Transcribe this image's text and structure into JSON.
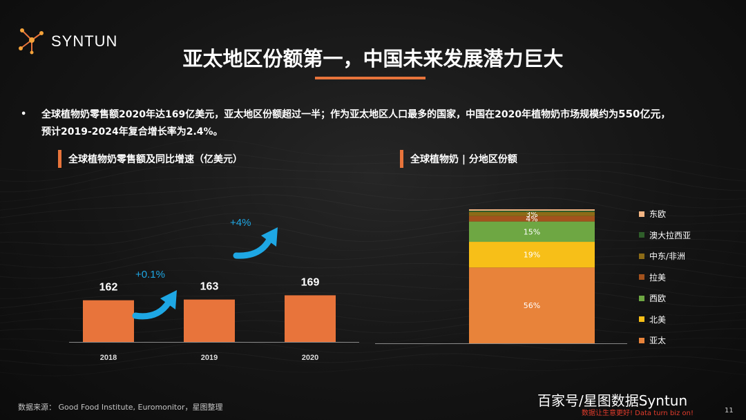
{
  "brand": {
    "name": "SYNTUN"
  },
  "title": "亚太地区份额第一，中国未来发展潜力巨大",
  "bullet": {
    "marker": "•",
    "line1_a": "全球植物奶零售额2020年达169亿美元，亚太地区份额超过一半；作为亚太地区人口最多的国家，中国在2020年植物奶市场规模约为",
    "line1_b": "550亿元",
    "line1_c": "，",
    "line2": "预计2019-2024年复合增长率为2.4%。"
  },
  "colors": {
    "accent": "#e8743b",
    "arrow": "#1ea7e4",
    "axis": "#8a8a8a"
  },
  "source": "数据来源： Good Food Institute, Euromonitor，星图整理",
  "page_number": "11",
  "watermark": {
    "main": "百家号/星图数据Syntun",
    "sub": "数据让生意更好! Data turn biz on!"
  },
  "chart_data": [
    {
      "type": "bar",
      "title": "全球植物奶零售额及同比增速（亿美元）",
      "categories": [
        "2018",
        "2019",
        "2020"
      ],
      "values": [
        162,
        163,
        169
      ],
      "growth_labels": [
        "+0.1%",
        "+4%"
      ],
      "color": "#e8743b"
    },
    {
      "type": "bar",
      "stacked": true,
      "title": "全球植物奶 | 分地区份额",
      "segments": [
        {
          "name": "亚太",
          "value": 56,
          "label": "56%",
          "color": "#e8833a"
        },
        {
          "name": "北美",
          "value": 19,
          "label": "19%",
          "color": "#f7bf18"
        },
        {
          "name": "西欧",
          "value": 15,
          "label": "15%",
          "color": "#6ea743"
        },
        {
          "name": "拉美",
          "value": 4,
          "label": "4%",
          "color": "#a3521d"
        },
        {
          "name": "中东/非洲",
          "value": 3,
          "label": "3%",
          "color": "#8c6b17"
        },
        {
          "name": "澳大拉西亚",
          "value": 1,
          "label": "",
          "color": "#2f5e2a"
        },
        {
          "name": "东欧",
          "value": 1,
          "label": "",
          "color": "#f3b583"
        }
      ],
      "legend_order": [
        "东欧",
        "澳大拉西亚",
        "中东/非洲",
        "拉美",
        "西欧",
        "北美",
        "亚太"
      ]
    }
  ]
}
